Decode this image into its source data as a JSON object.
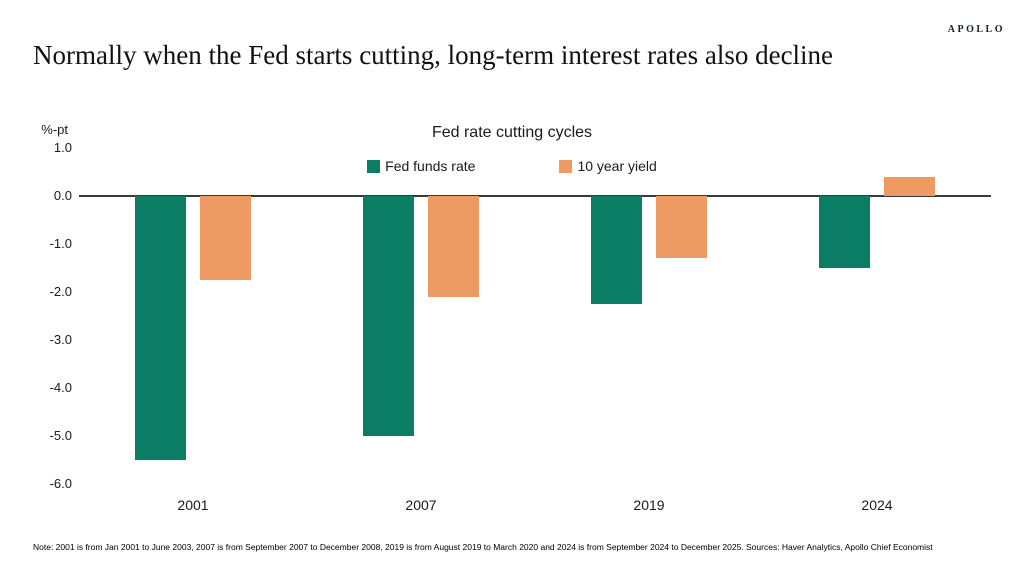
{
  "header": {
    "logo": "APOLLO",
    "title": "Normally when the Fed starts cutting, long-term interest rates also decline"
  },
  "chart_data": {
    "type": "bar",
    "title": "Fed rate cutting cycles",
    "unit_label": "%-pt",
    "categories": [
      "2001",
      "2007",
      "2019",
      "2024"
    ],
    "series": [
      {
        "name": "Fed funds rate",
        "color": "#0B7D64",
        "values": [
          -5.5,
          -5.0,
          -2.25,
          -1.5
        ]
      },
      {
        "name": "10 year yield",
        "color": "#ED9B63",
        "values": [
          -1.75,
          -2.1,
          -1.3,
          0.4
        ]
      }
    ],
    "ylim": [
      -6.0,
      1.0
    ],
    "ytick_step": 1.0,
    "ytick_labels": [
      "1.0",
      "0.0",
      "-1.0",
      "-2.0",
      "-3.0",
      "-4.0",
      "-5.0",
      "-6.0"
    ],
    "grid": false,
    "legend_position": "top-center",
    "axis_line_color": "#3a3a3a"
  },
  "footer": {
    "note": "Note: 2001 is from Jan 2001 to June 2003, 2007 is from September 2007 to December 2008, 2019 is from August 2019 to March 2020 and 2024 is from September 2024 to December 2025. Sources: Haver Analytics, Apollo Chief Economist"
  }
}
